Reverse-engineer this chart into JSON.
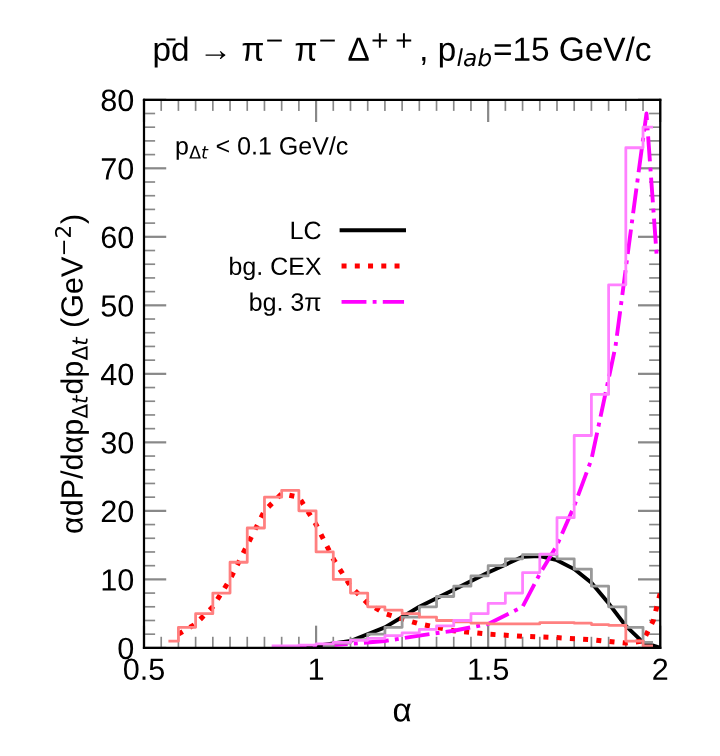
{
  "chart_data": {
    "type": "line",
    "title": "p̄d → π$^{−}$ π$^{−}$ Δ$^{++}$, p$_{lab}$=15 GeV/c",
    "xlabel": "α",
    "ylabel": "αdP/dαp$_{Δt}$dp$_{Δt}$ (GeV$^{−2}$)",
    "annotations": [
      "p$_{Δt}$ < 0.1 GeV/c"
    ],
    "xlim": [
      0.5,
      2
    ],
    "xticks": [
      0.5,
      1,
      1.5,
      2
    ],
    "ylim": [
      0,
      80
    ],
    "yticks": [
      0,
      10,
      20,
      30,
      40,
      50,
      60,
      70,
      80
    ],
    "grid": false,
    "legend": "top left",
    "marker": "none",
    "series": [
      {
        "name": "LC",
        "color": "#000000",
        "line_style": "solid",
        "x": [
          0.9,
          1.0,
          1.1,
          1.2,
          1.3,
          1.4,
          1.5,
          1.6,
          1.65,
          1.7,
          1.75,
          1.8,
          1.85,
          1.9,
          1.95,
          2.0
        ],
        "values": [
          0,
          0.3,
          1,
          3,
          6,
          8.5,
          11,
          13.3,
          13.4,
          12.8,
          11.5,
          9.5,
          6.5,
          3.2,
          0.8,
          0
        ]
      },
      {
        "name": "bg. CEX",
        "color": "#ff0000",
        "line_style": "dotted",
        "x": [
          0.6,
          0.65,
          0.7,
          0.75,
          0.8,
          0.85,
          0.9,
          0.95,
          1.0,
          1.05,
          1.1,
          1.15,
          1.2,
          1.3,
          1.4,
          1.5,
          1.6,
          1.7,
          1.8,
          1.9,
          1.95,
          1.98,
          2.0
        ],
        "values": [
          2,
          3.5,
          6,
          10,
          15,
          20,
          22.5,
          22,
          18,
          13,
          9,
          6.5,
          5,
          3.5,
          2.5,
          2,
          1.7,
          1.5,
          1.2,
          0.7,
          1,
          4,
          8
        ]
      },
      {
        "name": "bg. 3π",
        "color": "#ff00ff",
        "line_style": "dashdot",
        "x": [
          0.9,
          1.0,
          1.1,
          1.2,
          1.3,
          1.4,
          1.5,
          1.6,
          1.65,
          1.7,
          1.75,
          1.8,
          1.87,
          1.92,
          1.96,
          1.99
        ],
        "values": [
          0,
          0.3,
          0.6,
          1,
          1.8,
          2.5,
          3.5,
          6,
          10.8,
          15,
          20.7,
          27.5,
          44,
          63,
          78,
          57
        ]
      },
      {
        "type": "step",
        "color": "#999999",
        "x": [
          1.025,
          1.075,
          1.125,
          1.175,
          1.225,
          1.275,
          1.325,
          1.375,
          1.425,
          1.475,
          1.525,
          1.575,
          1.625,
          1.675,
          1.725,
          1.775,
          1.825,
          1.875,
          1.925,
          1.975
        ],
        "values": [
          0.3,
          0.7,
          1.2,
          2,
          3,
          4.5,
          6,
          7.5,
          9,
          10.5,
          12,
          13,
          13.6,
          13.6,
          13,
          11.5,
          9,
          6,
          3,
          0.8
        ]
      },
      {
        "type": "step",
        "color": "#ff8080",
        "x": [
          0.575,
          0.625,
          0.675,
          0.725,
          0.775,
          0.825,
          0.875,
          0.925,
          0.975,
          1.025,
          1.075,
          1.125,
          1.175,
          1.225,
          1.275,
          1.325,
          1.375,
          1.425,
          1.475,
          1.525,
          1.575,
          1.625,
          1.675,
          1.725,
          1.775,
          1.825,
          1.875,
          1.925,
          1.975
        ],
        "values": [
          1,
          3,
          5,
          8,
          12.5,
          17.5,
          22,
          23,
          20,
          14,
          10,
          8,
          6,
          5.5,
          5,
          4.5,
          4,
          3.8,
          3.6,
          3.5,
          3.5,
          3.5,
          3.7,
          3.7,
          3.6,
          3.4,
          3.3,
          1,
          0.3
        ]
      },
      {
        "type": "step",
        "color": "#ff80ff",
        "x": [
          0.875,
          0.925,
          0.975,
          1.025,
          1.075,
          1.125,
          1.175,
          1.225,
          1.275,
          1.325,
          1.375,
          1.425,
          1.475,
          1.525,
          1.575,
          1.625,
          1.675,
          1.725,
          1.775,
          1.825,
          1.875,
          1.925,
          1.975
        ],
        "values": [
          0.3,
          0.3,
          0.4,
          0.6,
          0.8,
          1.1,
          1.4,
          1.8,
          2.2,
          2.7,
          3.2,
          4,
          5,
          6.5,
          8,
          11,
          13.7,
          19,
          31,
          37,
          53,
          73,
          76
        ]
      }
    ]
  }
}
